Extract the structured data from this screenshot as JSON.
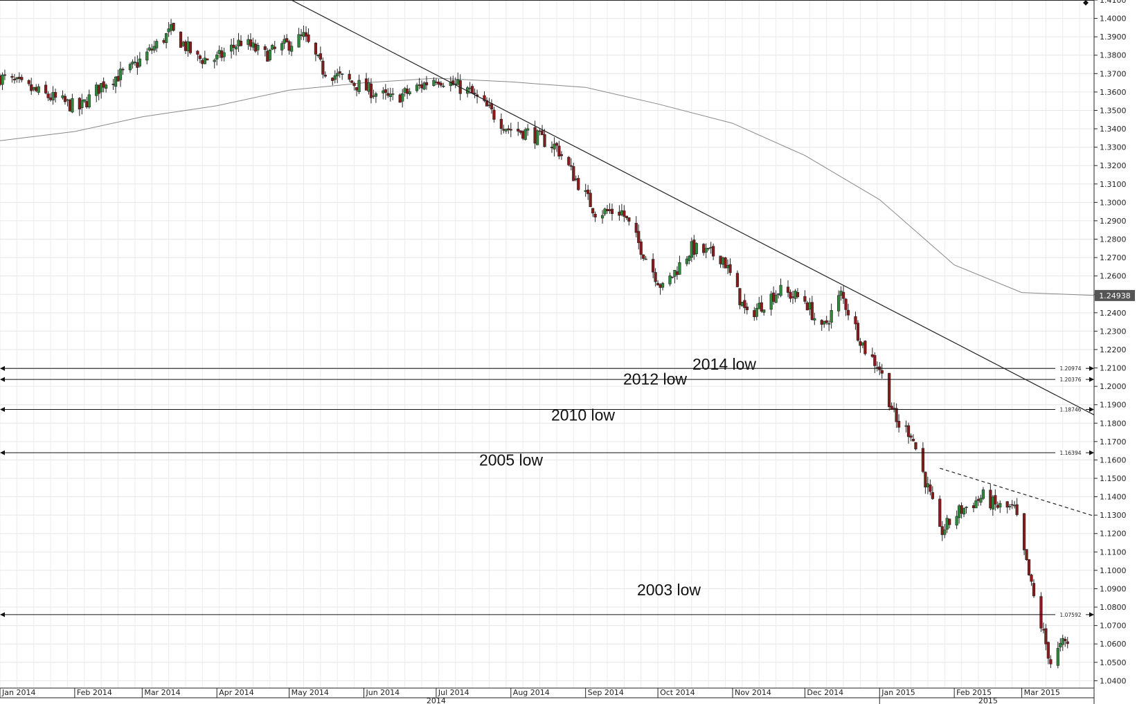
{
  "chart_data": {
    "type": "candlestick",
    "instrument_price_tag": "1.24938",
    "y_axis": {
      "range": [
        1.036,
        1.41
      ],
      "ticks": [
        "1.4100",
        "1.4000",
        "1.3900",
        "1.3800",
        "1.3700",
        "1.3600",
        "1.3500",
        "1.3400",
        "1.3300",
        "1.3200",
        "1.3100",
        "1.3000",
        "1.2900",
        "1.2800",
        "1.2700",
        "1.2600",
        "1.2500",
        "1.2400",
        "1.2300",
        "1.2200",
        "1.2100",
        "1.2000",
        "1.1900",
        "1.1800",
        "1.1700",
        "1.1600",
        "1.1500",
        "1.1400",
        "1.1300",
        "1.1200",
        "1.1100",
        "1.1000",
        "1.0900",
        "1.0800",
        "1.0700",
        "1.0600",
        "1.0500",
        "1.0400"
      ]
    },
    "x_axis": {
      "range": [
        "2014-01-01",
        "2015-03-31"
      ],
      "month_labels": [
        {
          "date": "2014-01-01",
          "label": "Jan 2014"
        },
        {
          "date": "2014-02-01",
          "label": "Feb 2014"
        },
        {
          "date": "2014-03-01",
          "label": "Mar 2014"
        },
        {
          "date": "2014-04-01",
          "label": "Apr 2014"
        },
        {
          "date": "2014-05-01",
          "label": "May 2014"
        },
        {
          "date": "2014-06-01",
          "label": "Jun 2014"
        },
        {
          "date": "2014-07-01",
          "label": "Jul 2014"
        },
        {
          "date": "2014-08-01",
          "label": "Aug 2014"
        },
        {
          "date": "2014-09-01",
          "label": "Sep 2014"
        },
        {
          "date": "2014-10-01",
          "label": "Oct 2014"
        },
        {
          "date": "2014-11-01",
          "label": "Nov 2014"
        },
        {
          "date": "2014-12-01",
          "label": "Dec 2014"
        },
        {
          "date": "2015-01-01",
          "label": "Jan 2015"
        },
        {
          "date": "2015-02-01",
          "label": "Feb 2015"
        },
        {
          "date": "2015-03-01",
          "label": "Mar 2015"
        }
      ],
      "year_labels": [
        {
          "date": "2014-07-01",
          "label": "2014"
        },
        {
          "date": "2015-02-15",
          "label": "2015"
        }
      ]
    },
    "levels": [
      {
        "value": 1.20974,
        "label": "1.20974",
        "annotation": "2014 low"
      },
      {
        "value": 1.20376,
        "label": "1.20376",
        "annotation": "2012 low"
      },
      {
        "value": 1.18746,
        "label": "1.18746",
        "annotation": "2010 low"
      },
      {
        "value": 1.16394,
        "label": "1.16394",
        "annotation": "2005 low"
      },
      {
        "value": 1.07592,
        "label": "1.07592",
        "annotation": "2003 low"
      }
    ],
    "trendline": {
      "points": [
        [
          "2014-05-01",
          1.4106
        ],
        [
          "2015-03-31",
          1.1845
        ]
      ]
    },
    "dashed_trendline": {
      "points": [
        [
          "2015-01-26",
          1.1555
        ],
        [
          "2015-03-31",
          1.1295
        ]
      ]
    },
    "moving_average": {
      "points": [
        [
          "2014-01-01",
          1.3335
        ],
        [
          "2014-02-01",
          1.3385
        ],
        [
          "2014-03-01",
          1.3465
        ],
        [
          "2014-04-01",
          1.3525
        ],
        [
          "2014-05-01",
          1.361
        ],
        [
          "2014-06-01",
          1.365
        ],
        [
          "2014-07-01",
          1.3675
        ],
        [
          "2014-08-01",
          1.3655
        ],
        [
          "2014-09-01",
          1.3625
        ],
        [
          "2014-10-01",
          1.3535
        ],
        [
          "2014-11-01",
          1.343
        ],
        [
          "2014-12-01",
          1.3255
        ],
        [
          "2015-01-01",
          1.3015
        ],
        [
          "2015-02-01",
          1.266
        ],
        [
          "2015-03-01",
          1.251
        ],
        [
          "2015-03-31",
          1.2494
        ]
      ]
    },
    "anchors": [
      [
        "2014-01-01",
        1.368
      ],
      [
        "2014-01-24",
        1.356
      ],
      [
        "2014-02-03",
        1.351
      ],
      [
        "2014-02-13",
        1.365
      ],
      [
        "2014-02-24",
        1.372
      ],
      [
        "2014-03-13",
        1.393
      ],
      [
        "2014-03-24",
        1.378
      ],
      [
        "2014-04-01",
        1.378
      ],
      [
        "2014-04-11",
        1.3875
      ],
      [
        "2014-04-21",
        1.38
      ],
      [
        "2014-05-07",
        1.39
      ],
      [
        "2014-05-15",
        1.372
      ],
      [
        "2014-06-05",
        1.36
      ],
      [
        "2014-06-12",
        1.356
      ],
      [
        "2014-06-20",
        1.36
      ],
      [
        "2014-07-01",
        1.368
      ],
      [
        "2014-07-15",
        1.36
      ],
      [
        "2014-07-31",
        1.34
      ],
      [
        "2014-08-08",
        1.338
      ],
      [
        "2014-08-20",
        1.33
      ],
      [
        "2014-09-05",
        1.295
      ],
      [
        "2014-09-16",
        1.295
      ],
      [
        "2014-10-03",
        1.253
      ],
      [
        "2014-10-15",
        1.275
      ],
      [
        "2014-10-28",
        1.27
      ],
      [
        "2014-11-07",
        1.238
      ],
      [
        "2014-11-20",
        1.252
      ],
      [
        "2014-12-01",
        1.247
      ],
      [
        "2014-12-08",
        1.23
      ],
      [
        "2014-12-16",
        1.25
      ],
      [
        "2014-12-26",
        1.22
      ],
      [
        "2015-01-01",
        1.21
      ],
      [
        "2015-01-08",
        1.18
      ],
      [
        "2015-01-14",
        1.175
      ],
      [
        "2015-01-22",
        1.14
      ],
      [
        "2015-01-26",
        1.12
      ],
      [
        "2015-02-03",
        1.132
      ],
      [
        "2015-02-13",
        1.14
      ],
      [
        "2015-02-18",
        1.135
      ],
      [
        "2015-02-26",
        1.133
      ],
      [
        "2015-03-06",
        1.085
      ],
      [
        "2015-03-13",
        1.05
      ],
      [
        "2015-03-18",
        1.06
      ],
      [
        "2015-03-20",
        1.06
      ]
    ]
  }
}
